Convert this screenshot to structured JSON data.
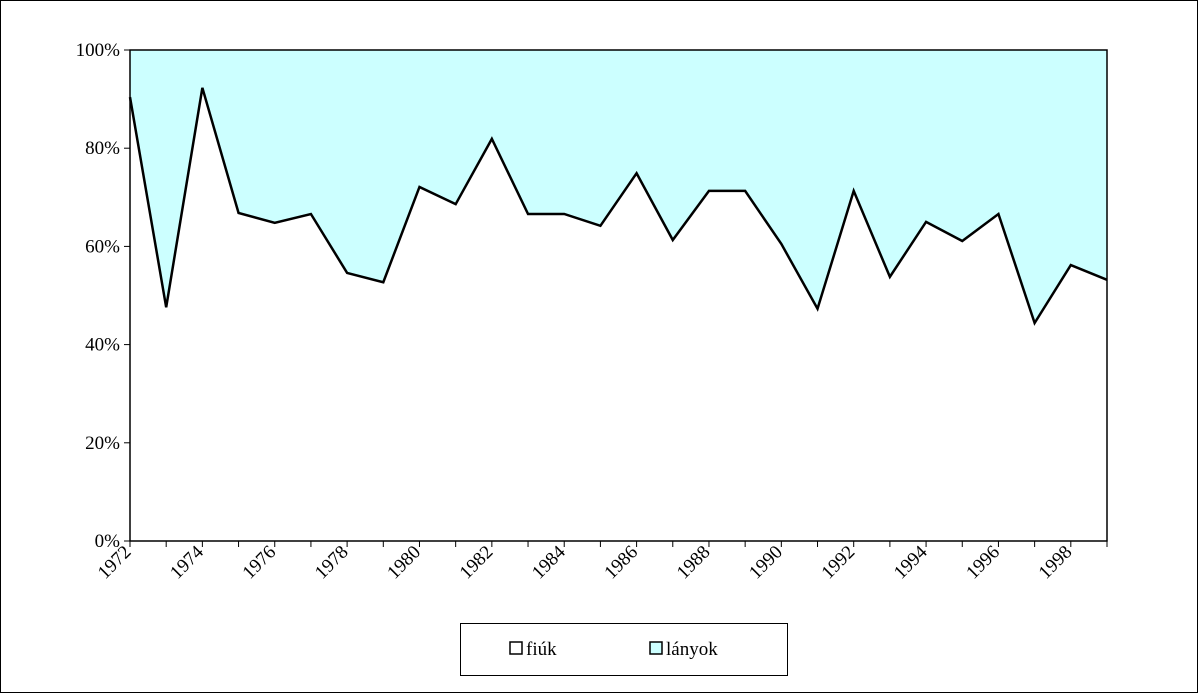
{
  "chart_data": {
    "type": "stacked_area_100",
    "categories": [
      "1972",
      null,
      "1974",
      null,
      "1976",
      null,
      "1978",
      null,
      "1980",
      null,
      "1982",
      null,
      "1984",
      null,
      "1986",
      null,
      "1988",
      null,
      "1990",
      null,
      "1992",
      null,
      "1994",
      null,
      "1996",
      null,
      "1998",
      null
    ],
    "series": [
      {
        "name": "fiúk",
        "color": "#ffffff",
        "values": [
          90.4,
          47.6,
          92.3,
          66.8,
          64.8,
          66.6,
          54.6,
          52.7,
          72.1,
          68.6,
          81.9,
          66.6,
          66.6,
          64.2,
          74.9,
          61.3,
          71.3,
          71.3,
          60.5,
          47.3,
          71.3,
          53.8,
          65.0,
          61.1,
          66.6,
          44.4,
          56.2,
          53.2
        ]
      },
      {
        "name": "lányok",
        "color": "#ccffff",
        "values": [
          9.6,
          52.4,
          7.7,
          33.2,
          35.2,
          33.4,
          45.4,
          47.3,
          27.9,
          31.4,
          18.1,
          33.4,
          33.4,
          35.8,
          25.1,
          38.7,
          28.7,
          28.7,
          39.5,
          52.7,
          28.7,
          46.2,
          35.0,
          38.9,
          33.4,
          55.6,
          43.8,
          46.8
        ]
      }
    ],
    "ylim": [
      0,
      100
    ],
    "yticks": [
      {
        "value": 0,
        "label": "0%"
      },
      {
        "value": 20,
        "label": "20%"
      },
      {
        "value": 40,
        "label": "40%"
      },
      {
        "value": 60,
        "label": "60%"
      },
      {
        "value": 80,
        "label": "80%"
      },
      {
        "value": 100,
        "label": "100%"
      }
    ],
    "legend": "bottom"
  }
}
